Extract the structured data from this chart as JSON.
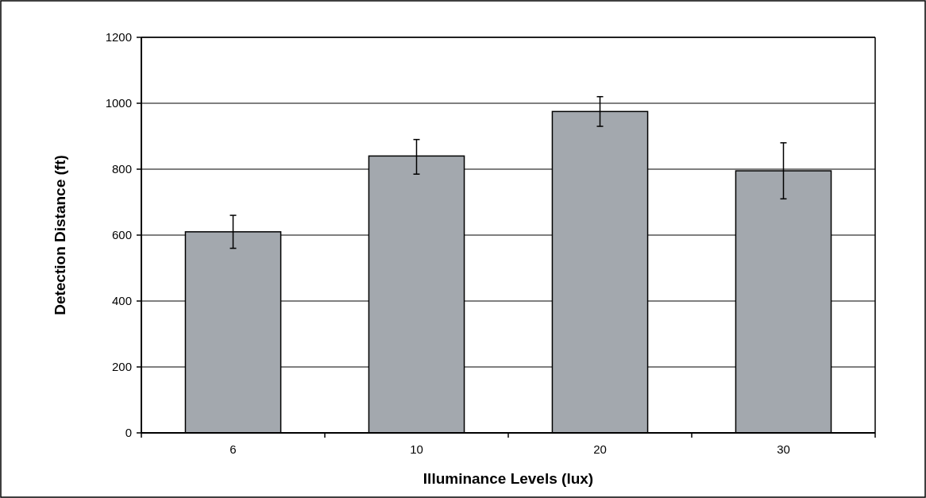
{
  "chart_data": {
    "type": "bar",
    "xlabel": "Illuminance Levels (lux)",
    "ylabel": "Detection Distance (ft)",
    "categories": [
      "6",
      "10",
      "20",
      "30"
    ],
    "values": [
      610,
      840,
      975,
      795
    ],
    "errors": [
      [
        560,
        660
      ],
      [
        785,
        890
      ],
      [
        930,
        1020
      ],
      [
        710,
        880
      ]
    ],
    "color": "#a3a8ae",
    "ylim": [
      0,
      1200
    ],
    "yticks": [
      0,
      200,
      400,
      600,
      800,
      1000,
      1200
    ],
    "grid": "y"
  }
}
